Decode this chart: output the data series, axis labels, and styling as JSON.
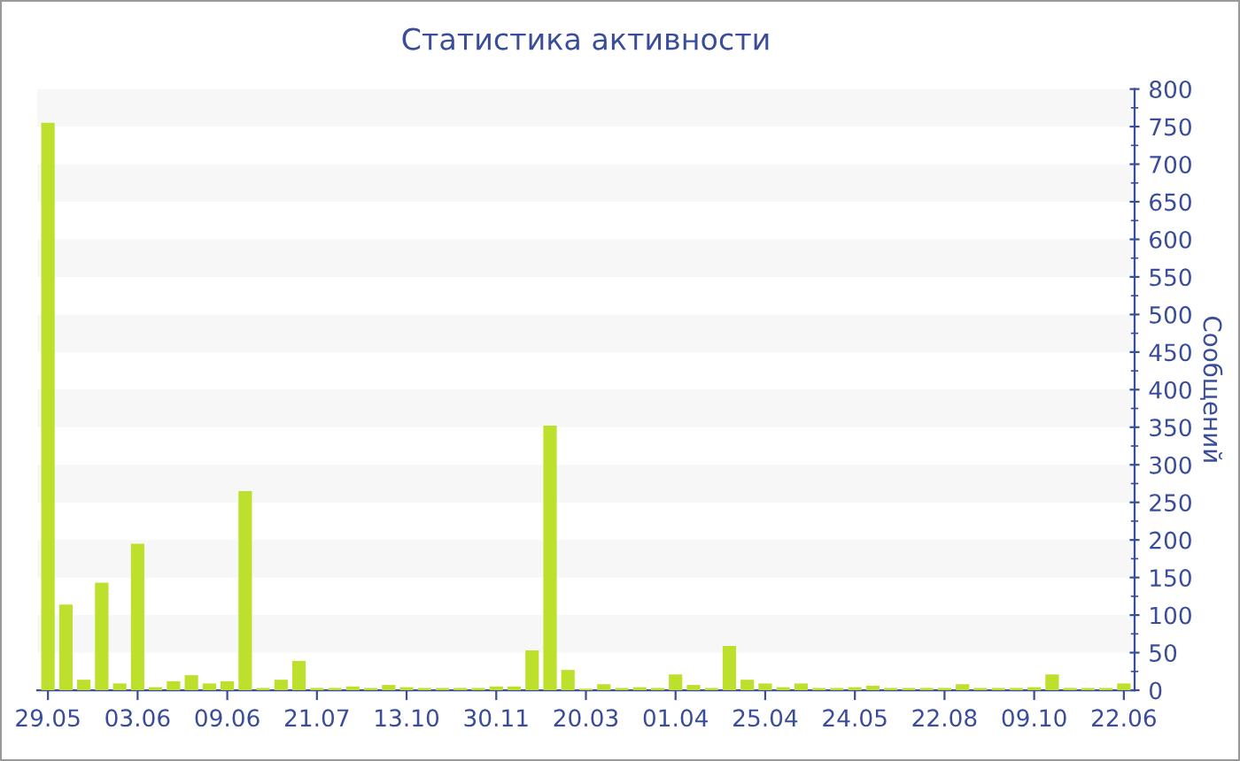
{
  "chart_data": {
    "type": "bar",
    "title": "Статистика активности",
    "ylabel": "Сообщений",
    "categories": [
      "29.05",
      null,
      null,
      null,
      null,
      "03.06",
      null,
      null,
      null,
      null,
      "09.06",
      null,
      null,
      null,
      null,
      "21.07",
      null,
      null,
      null,
      null,
      "13.10",
      null,
      null,
      null,
      null,
      "30.11",
      null,
      null,
      null,
      null,
      "20.03",
      null,
      null,
      null,
      null,
      "01.04",
      null,
      null,
      null,
      null,
      "25.04",
      null,
      null,
      null,
      null,
      "24.05",
      null,
      null,
      null,
      null,
      "22.08",
      null,
      null,
      null,
      null,
      "09.10",
      null,
      null,
      null,
      null,
      "22.06"
    ],
    "values": [
      755,
      114,
      14,
      143,
      9,
      195,
      4,
      12,
      20,
      9,
      12,
      265,
      3,
      14,
      39,
      3,
      3,
      5,
      3,
      7,
      4,
      3,
      3,
      3,
      3,
      5,
      5,
      53,
      352,
      27,
      2,
      8,
      3,
      4,
      3,
      21,
      7,
      3,
      59,
      14,
      9,
      4,
      9,
      3,
      3,
      4,
      6,
      3,
      3,
      3,
      3,
      8,
      3,
      3,
      3,
      4,
      21,
      3,
      3,
      3,
      9
    ],
    "color": "#bde02c",
    "ylim": [
      0,
      800
    ],
    "yticks": [
      0,
      50,
      100,
      150,
      200,
      250,
      300,
      350,
      400,
      450,
      500,
      550,
      600,
      650,
      700,
      750,
      800
    ],
    "bands": [
      {
        "axis": "y",
        "from": 50,
        "to": 100,
        "color": "#f7f7f7"
      },
      {
        "axis": "y",
        "from": 150,
        "to": 200,
        "color": "#f7f7f7"
      },
      {
        "axis": "y",
        "from": 250,
        "to": 300,
        "color": "#f7f7f7"
      },
      {
        "axis": "y",
        "from": 350,
        "to": 400,
        "color": "#f7f7f7"
      },
      {
        "axis": "y",
        "from": 450,
        "to": 500,
        "color": "#f7f7f7"
      },
      {
        "axis": "y",
        "from": 550,
        "to": 600,
        "color": "#f7f7f7"
      },
      {
        "axis": "y",
        "from": 650,
        "to": 700,
        "color": "#f7f7f7"
      },
      {
        "axis": "y",
        "from": 750,
        "to": 800,
        "color": "#f7f7f7"
      }
    ],
    "legend": false
  }
}
